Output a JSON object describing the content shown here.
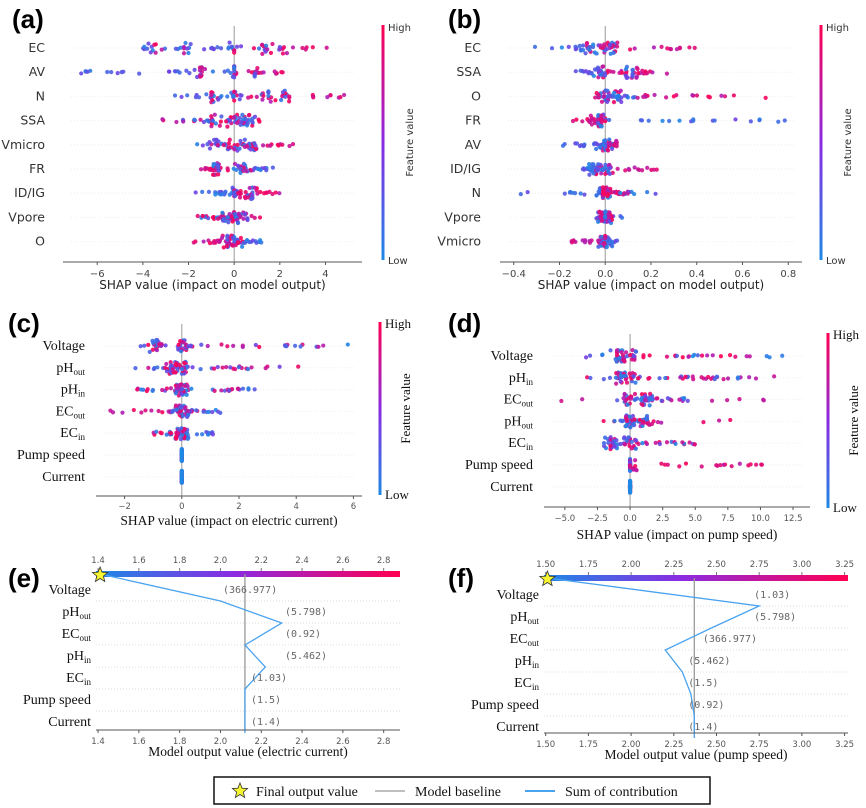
{
  "chart_data": [
    {
      "id": "a",
      "panel_label": "(a)",
      "type": "scatter",
      "subtype": "shap-beeswarm",
      "xlabel": "SHAP value (impact on model output)",
      "xticks": [
        -6,
        -4,
        -2,
        0,
        2,
        4
      ],
      "xlim": [
        -7.5,
        5.6
      ],
      "colorbar": {
        "label": "Feature value",
        "high": "High",
        "low": "Low"
      },
      "features": [
        {
          "name": "EC",
          "min": -4.1,
          "max": 5.0,
          "low_range": [
            -4.1,
            0.3
          ],
          "high_range": [
            0.8,
            5.0
          ],
          "dense": [
            -3.5,
            -2.2,
            0,
            1.4,
            2.0
          ]
        },
        {
          "name": "AV",
          "min": -6.8,
          "max": 2.3,
          "low_range": [
            -6.8,
            0.0
          ],
          "high_range": [
            0.0,
            2.3
          ],
          "dense": [
            -1.5,
            0,
            0.9
          ]
        },
        {
          "name": "N",
          "min": -2.7,
          "max": 4.9,
          "low_range": [
            -2.7,
            0.4
          ],
          "high_range": [
            0.6,
            4.9
          ],
          "dense": [
            -1.0,
            0,
            1.5,
            2.3
          ]
        },
        {
          "name": "SSA",
          "min": -3.6,
          "max": 1.3,
          "low_range": [
            -2.3,
            1.0
          ],
          "high_range": [
            -3.6,
            1.3
          ],
          "dense": [
            -0.8,
            0,
            0.6
          ]
        },
        {
          "name": "Vmicro",
          "min": -1.8,
          "max": 2.9,
          "low_range": [
            -1.8,
            1.0
          ],
          "high_range": [
            -0.5,
            2.9
          ],
          "dense": [
            -1.0,
            0,
            0.7
          ]
        },
        {
          "name": "FR",
          "min": -3.3,
          "max": 2.2,
          "low_range": [
            -0.2,
            1.8
          ],
          "high_range": [
            -1.5,
            0.8
          ],
          "dense": [
            -0.9,
            0.3
          ]
        },
        {
          "name": "ID/IG",
          "min": -1.7,
          "max": 2.2,
          "low_range": [
            -1.7,
            0.2
          ],
          "high_range": [
            0.0,
            2.2
          ],
          "dense": [
            0,
            0.8
          ]
        },
        {
          "name": "Vpore",
          "min": -1.6,
          "max": 1.9,
          "low_range": [
            -1.5,
            0.6
          ],
          "high_range": [
            -1.6,
            1.9
          ],
          "dense": [
            -0.2,
            0.3
          ]
        },
        {
          "name": "O",
          "min": -1.8,
          "max": 1.3,
          "low_range": [
            0.0,
            1.3
          ],
          "high_range": [
            -1.8,
            0.4
          ],
          "dense": [
            -0.3,
            0.1
          ]
        }
      ]
    },
    {
      "id": "b",
      "panel_label": "(b)",
      "type": "scatter",
      "subtype": "shap-beeswarm",
      "xlabel": "SHAP value (impact on model output)",
      "xticks": [
        -0.4,
        -0.2,
        0.0,
        0.2,
        0.4,
        0.6,
        0.8
      ],
      "tick_format": "fixed1",
      "xlim": [
        -0.46,
        0.86
      ],
      "colorbar": {
        "label": "Feature value",
        "high": "High",
        "low": "Low"
      },
      "features": [
        {
          "name": "EC",
          "min": -0.37,
          "max": 0.42,
          "low_range": [
            -0.37,
            0.0
          ],
          "high_range": [
            0.0,
            0.42
          ],
          "dense": [
            -0.08,
            -0.02,
            0.04
          ]
        },
        {
          "name": "SSA",
          "min": -0.13,
          "max": 0.29,
          "low_range": [
            -0.13,
            0.0
          ],
          "high_range": [
            0.0,
            0.29
          ],
          "dense": [
            -0.03,
            0.12
          ]
        },
        {
          "name": "O",
          "min": -0.14,
          "max": 0.74,
          "low_range": [
            -0.05,
            0.13
          ],
          "high_range": [
            -0.14,
            0.74
          ],
          "dense": [
            -0.02,
            0.04
          ]
        },
        {
          "name": "FR",
          "min": -0.15,
          "max": 0.8,
          "low_range": [
            0.0,
            0.8
          ],
          "high_range": [
            -0.15,
            0.0
          ],
          "dense": [
            -0.03
          ]
        },
        {
          "name": "AV",
          "min": -0.2,
          "max": 0.05,
          "low_range": [
            -0.2,
            0.0
          ],
          "high_range": [
            0.0,
            0.05
          ],
          "dense": [
            -0.01,
            0.03
          ]
        },
        {
          "name": "ID/IG",
          "min": -0.1,
          "max": 0.25,
          "low_range": [
            -0.1,
            0.02
          ],
          "high_range": [
            0.0,
            0.25
          ],
          "dense": [
            -0.04,
            0.01
          ]
        },
        {
          "name": "N",
          "min": -0.38,
          "max": 0.22,
          "low_range": [
            -0.38,
            0.22
          ],
          "high_range": [
            0.0,
            0.1
          ],
          "dense": [
            -0.01
          ]
        },
        {
          "name": "Vpore",
          "min": -0.07,
          "max": 0.08,
          "low_range": [
            -0.07,
            0.08
          ],
          "high_range": [
            -0.05,
            0.04
          ],
          "dense": [
            0.0
          ]
        },
        {
          "name": "Vmicro",
          "min": -0.15,
          "max": 0.06,
          "low_range": [
            -0.03,
            0.06
          ],
          "high_range": [
            -0.15,
            0.0
          ],
          "dense": [
            0.0
          ]
        }
      ]
    },
    {
      "id": "c",
      "panel_label": "(c)",
      "type": "scatter",
      "subtype": "shap-beeswarm",
      "xlabel": "SHAP value (impact on electric current)",
      "xticks": [
        -2,
        0,
        2,
        4,
        6
      ],
      "xlim": [
        -3.0,
        6.3
      ],
      "colorbar": {
        "label": "Feature value",
        "high": "High",
        "low": "Low"
      },
      "features": [
        {
          "name": "Voltage",
          "sub": "",
          "min": -1.6,
          "max": 5.9,
          "low_range": [
            -1.6,
            5.9
          ],
          "high_range": [
            -1.5,
            5.0
          ],
          "dense": [
            -0.9,
            0
          ]
        },
        {
          "name": "pH",
          "sub": "out",
          "min": -1.7,
          "max": 4.1,
          "low_range": [
            -1.7,
            3.6
          ],
          "high_range": [
            -1.5,
            4.1
          ],
          "dense": [
            -0.4,
            0
          ]
        },
        {
          "name": "pH",
          "sub": "in",
          "min": -1.7,
          "max": 2.9,
          "low_range": [
            -1.5,
            2.9
          ],
          "high_range": [
            -1.7,
            2.0
          ],
          "dense": [
            0
          ]
        },
        {
          "name": "EC",
          "sub": "out",
          "min": -2.6,
          "max": 1.9,
          "low_range": [
            -0.5,
            1.5
          ],
          "high_range": [
            -2.6,
            1.9
          ],
          "dense": [
            0
          ]
        },
        {
          "name": "EC",
          "sub": "in",
          "min": -1.0,
          "max": 1.1,
          "low_range": [
            -1.0,
            1.1
          ],
          "high_range": [
            -1.0,
            0.1
          ],
          "dense": [
            0
          ]
        },
        {
          "name": "Pump speed",
          "sub": "",
          "min": 0,
          "max": 0,
          "low_range": [
            0,
            0
          ],
          "high_range": [
            0,
            0
          ],
          "dense": [
            0
          ]
        },
        {
          "name": "Current",
          "sub": "",
          "min": 0,
          "max": 0,
          "low_range": [
            0,
            0
          ],
          "high_range": [
            0,
            0
          ],
          "dense": [
            0
          ]
        }
      ]
    },
    {
      "id": "d",
      "panel_label": "(d)",
      "type": "scatter",
      "subtype": "shap-beeswarm",
      "xlabel": "SHAP value (impact on pump speed)",
      "xticks": [
        -5.0,
        -2.5,
        0.0,
        2.5,
        5.0,
        7.5,
        10.0,
        12.5
      ],
      "tick_format": "fixed1",
      "xlim": [
        -6.6,
        13.8
      ],
      "colorbar": {
        "label": "Feature value",
        "high": "High",
        "low": "Low"
      },
      "features": [
        {
          "name": "Voltage",
          "sub": "",
          "min": -5.9,
          "max": 12.8,
          "low_range": [
            -5.9,
            12.8
          ],
          "high_range": [
            -0.6,
            10.0
          ],
          "dense": [
            -1.0,
            0.0
          ]
        },
        {
          "name": "pH",
          "sub": "in",
          "min": -4.0,
          "max": 11.7,
          "low_range": [
            -3.5,
            9.1
          ],
          "high_range": [
            -4.0,
            11.7
          ],
          "dense": [
            -0.6,
            0.0
          ]
        },
        {
          "name": "EC",
          "sub": "out",
          "min": -6.0,
          "max": 10.5,
          "low_range": [
            -1.0,
            4.5
          ],
          "high_range": [
            -6.0,
            10.5
          ],
          "dense": [
            0.0,
            1.3
          ]
        },
        {
          "name": "pH",
          "sub": "out",
          "min": -3.3,
          "max": 7.8,
          "low_range": [
            -1.5,
            1.0
          ],
          "high_range": [
            -3.3,
            7.8
          ],
          "dense": [
            0.0,
            1.3
          ]
        },
        {
          "name": "EC",
          "sub": "in",
          "min": -2.7,
          "max": 5.2,
          "low_range": [
            -2.7,
            5.0
          ],
          "high_range": [
            -0.5,
            5.2
          ],
          "dense": [
            -1.5,
            0.0
          ]
        },
        {
          "name": "Pump speed",
          "sub": "",
          "min": 0,
          "max": 10.5,
          "low_range": [
            0,
            0
          ],
          "high_range": [
            1.8,
            10.5
          ],
          "dense": [
            0
          ]
        },
        {
          "name": "Current",
          "sub": "",
          "min": 0,
          "max": 0,
          "low_range": [
            0,
            0
          ],
          "high_range": [
            0,
            0
          ],
          "dense": [
            0
          ]
        }
      ]
    },
    {
      "id": "e",
      "panel_label": "(e)",
      "type": "line",
      "subtype": "shap-decision",
      "xlabel": "Model output value (electric current)",
      "xticks": [
        1.4,
        1.6,
        1.8,
        2.0,
        2.2,
        2.4,
        2.6,
        2.8
      ],
      "tick_format": "fixed1",
      "xlim": [
        1.39,
        2.88
      ],
      "baseline": 2.12,
      "final_output": 1.41,
      "features": [
        {
          "name": "Voltage",
          "sub": "",
          "value_label": "(366.977)",
          "output": 2.0
        },
        {
          "name": "pH",
          "sub": "out",
          "value_label": "(5.798)",
          "output": 2.3
        },
        {
          "name": "EC",
          "sub": "out",
          "value_label": "(0.92)",
          "output": 2.12
        },
        {
          "name": "pH",
          "sub": "in",
          "value_label": "(5.462)",
          "output": 2.22
        },
        {
          "name": "EC",
          "sub": "in",
          "value_label": "(1.03)",
          "output": 2.12
        },
        {
          "name": "Pump speed",
          "sub": "",
          "value_label": "(1.5)",
          "output": 2.12
        },
        {
          "name": "Current",
          "sub": "",
          "value_label": "(1.4)",
          "output": 2.12
        }
      ]
    },
    {
      "id": "f",
      "panel_label": "(f)",
      "type": "line",
      "subtype": "shap-decision",
      "xlabel": "Model output value (pump speed)",
      "xticks": [
        1.5,
        1.75,
        2.0,
        2.25,
        2.5,
        2.75,
        3.0,
        3.25
      ],
      "tick_format": "fixed2",
      "xlim": [
        1.49,
        3.27
      ],
      "baseline": 2.37,
      "final_output": 1.51,
      "features": [
        {
          "name": "Voltage",
          "sub": "",
          "value_label": "(1.03)",
          "output": 2.75
        },
        {
          "name": "pH",
          "sub": "out",
          "value_label": "(5.798)",
          "output": 2.47
        },
        {
          "name": "EC",
          "sub": "out",
          "value_label": "(366.977)",
          "output": 2.2
        },
        {
          "name": "pH",
          "sub": "in",
          "value_label": "(5.462)",
          "output": 2.3
        },
        {
          "name": "EC",
          "sub": "in",
          "value_label": "(1.5)",
          "output": 2.35
        },
        {
          "name": "Pump speed",
          "sub": "",
          "value_label": "(0.92)",
          "output": 2.37
        },
        {
          "name": "Current",
          "sub": "",
          "value_label": "(1.4)",
          "output": 2.37
        }
      ]
    }
  ],
  "legend": {
    "items": [
      {
        "label": "Final output value",
        "symbol": "star",
        "color": "#f5f532"
      },
      {
        "label": "Model baseline",
        "symbol": "line",
        "color": "#999999"
      },
      {
        "label": "Sum of contribution",
        "symbol": "line",
        "color": "#4aa3f0"
      }
    ]
  },
  "colors": {
    "low": "#1e88e5",
    "mid": "#8a2be2",
    "high": "#ff0052",
    "decision_line": "#4aa3f0",
    "baseline": "#999999"
  }
}
